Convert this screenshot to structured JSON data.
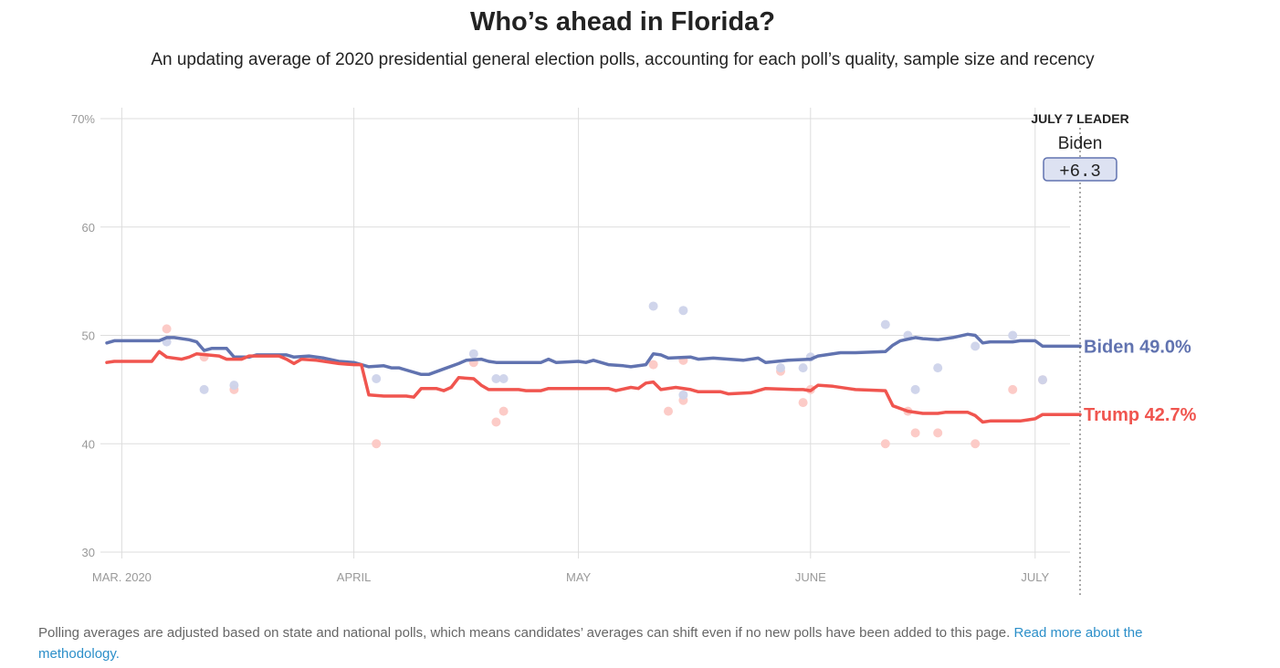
{
  "title": "Who’s ahead in Florida?",
  "subtitle": "An updating average of 2020 presidential general election polls, accounting for each poll’s quality, sample size and recency",
  "footer": {
    "text": "Polling averages are adjusted based on state and national polls, which means candidates’ averages can shift even if no new polls have been added to this page. ",
    "link": "Read more about the methodology."
  },
  "leader_box": {
    "heading": "JULY 7 LEADER",
    "name": "Biden",
    "margin": "+6.3"
  },
  "colors": {
    "biden": "#6173b0",
    "trump": "#f0554f",
    "biden_poll": "#cdd3ea",
    "trump_poll": "#fcc8c4",
    "grid": "#dddddd"
  },
  "chart_data": {
    "type": "line",
    "x_unit": "date (2020)",
    "x_range": [
      "2020-02-28",
      "2020-07-07"
    ],
    "ylim": [
      30,
      70
    ],
    "y_ticks": [
      "70%",
      "60",
      "50",
      "40",
      "30"
    ],
    "y_tick_values": [
      70,
      60,
      50,
      40,
      30
    ],
    "x_ticks": [
      {
        "label": "MAR. 2020",
        "date": "2020-03-01"
      },
      {
        "label": "APRIL",
        "date": "2020-04-01"
      },
      {
        "label": "MAY",
        "date": "2020-05-01"
      },
      {
        "label": "JUNE",
        "date": "2020-06-01"
      },
      {
        "label": "JULY",
        "date": "2020-07-01"
      }
    ],
    "grid": true,
    "series": [
      {
        "name": "Biden",
        "end_label": "Biden 49.0%",
        "points": [
          [
            "2020-02-28",
            49.3
          ],
          [
            "2020-02-29",
            49.5
          ],
          [
            "2020-03-04",
            49.5
          ],
          [
            "2020-03-06",
            49.5
          ],
          [
            "2020-03-07",
            49.8
          ],
          [
            "2020-03-08",
            49.8
          ],
          [
            "2020-03-10",
            49.6
          ],
          [
            "2020-03-11",
            49.4
          ],
          [
            "2020-03-12",
            48.6
          ],
          [
            "2020-03-13",
            48.8
          ],
          [
            "2020-03-15",
            48.8
          ],
          [
            "2020-03-16",
            48.0
          ],
          [
            "2020-03-18",
            48.0
          ],
          [
            "2020-03-19",
            48.2
          ],
          [
            "2020-03-23",
            48.2
          ],
          [
            "2020-03-24",
            48.0
          ],
          [
            "2020-03-26",
            48.1
          ],
          [
            "2020-03-28",
            47.9
          ],
          [
            "2020-03-30",
            47.6
          ],
          [
            "2020-04-01",
            47.5
          ],
          [
            "2020-04-03",
            47.1
          ],
          [
            "2020-04-05",
            47.2
          ],
          [
            "2020-04-06",
            47.0
          ],
          [
            "2020-04-07",
            47.0
          ],
          [
            "2020-04-08",
            46.8
          ],
          [
            "2020-04-10",
            46.4
          ],
          [
            "2020-04-11",
            46.4
          ],
          [
            "2020-04-13",
            46.9
          ],
          [
            "2020-04-15",
            47.4
          ],
          [
            "2020-04-16",
            47.7
          ],
          [
            "2020-04-18",
            47.8
          ],
          [
            "2020-04-19",
            47.6
          ],
          [
            "2020-04-20",
            47.5
          ],
          [
            "2020-04-26",
            47.5
          ],
          [
            "2020-04-27",
            47.8
          ],
          [
            "2020-04-28",
            47.5
          ],
          [
            "2020-05-01",
            47.6
          ],
          [
            "2020-05-02",
            47.5
          ],
          [
            "2020-05-03",
            47.7
          ],
          [
            "2020-05-05",
            47.3
          ],
          [
            "2020-05-07",
            47.2
          ],
          [
            "2020-05-08",
            47.1
          ],
          [
            "2020-05-10",
            47.3
          ],
          [
            "2020-05-11",
            48.3
          ],
          [
            "2020-05-12",
            48.2
          ],
          [
            "2020-05-13",
            47.9
          ],
          [
            "2020-05-16",
            48.0
          ],
          [
            "2020-05-17",
            47.8
          ],
          [
            "2020-05-19",
            47.9
          ],
          [
            "2020-05-23",
            47.7
          ],
          [
            "2020-05-25",
            47.9
          ],
          [
            "2020-05-26",
            47.5
          ],
          [
            "2020-05-29",
            47.7
          ],
          [
            "2020-06-01",
            47.8
          ],
          [
            "2020-06-02",
            48.1
          ],
          [
            "2020-06-05",
            48.4
          ],
          [
            "2020-06-07",
            48.4
          ],
          [
            "2020-06-11",
            48.5
          ],
          [
            "2020-06-12",
            49.1
          ],
          [
            "2020-06-13",
            49.5
          ],
          [
            "2020-06-15",
            49.8
          ],
          [
            "2020-06-16",
            49.7
          ],
          [
            "2020-06-18",
            49.6
          ],
          [
            "2020-06-20",
            49.8
          ],
          [
            "2020-06-22",
            50.1
          ],
          [
            "2020-06-23",
            50.0
          ],
          [
            "2020-06-24",
            49.3
          ],
          [
            "2020-06-25",
            49.4
          ],
          [
            "2020-06-28",
            49.4
          ],
          [
            "2020-06-29",
            49.5
          ],
          [
            "2020-07-01",
            49.5
          ],
          [
            "2020-07-02",
            49.0
          ],
          [
            "2020-07-07",
            49.0
          ]
        ]
      },
      {
        "name": "Trump",
        "end_label": "Trump 42.7%",
        "points": [
          [
            "2020-02-28",
            47.5
          ],
          [
            "2020-02-29",
            47.6
          ],
          [
            "2020-03-05",
            47.6
          ],
          [
            "2020-03-06",
            48.5
          ],
          [
            "2020-03-07",
            48.0
          ],
          [
            "2020-03-09",
            47.8
          ],
          [
            "2020-03-10",
            48.0
          ],
          [
            "2020-03-11",
            48.3
          ],
          [
            "2020-03-14",
            48.1
          ],
          [
            "2020-03-15",
            47.8
          ],
          [
            "2020-03-17",
            47.8
          ],
          [
            "2020-03-18",
            48.1
          ],
          [
            "2020-03-22",
            48.1
          ],
          [
            "2020-03-23",
            47.8
          ],
          [
            "2020-03-24",
            47.4
          ],
          [
            "2020-03-25",
            47.8
          ],
          [
            "2020-03-27",
            47.7
          ],
          [
            "2020-03-30",
            47.4
          ],
          [
            "2020-04-01",
            47.3
          ],
          [
            "2020-04_02",
            47.3
          ],
          [
            "2020-04-03",
            44.5
          ],
          [
            "2020-04-05",
            44.4
          ],
          [
            "2020-04-08",
            44.4
          ],
          [
            "2020-04-09",
            44.3
          ],
          [
            "2020-04-10",
            45.1
          ],
          [
            "2020-04-12",
            45.1
          ],
          [
            "2020-04-13",
            44.9
          ],
          [
            "2020-04-14",
            45.2
          ],
          [
            "2020-04-15",
            46.1
          ],
          [
            "2020-04-17",
            46.0
          ],
          [
            "2020-04-18",
            45.4
          ],
          [
            "2020-04-19",
            45.0
          ],
          [
            "2020-04-23",
            45.0
          ],
          [
            "2020-04-24",
            44.9
          ],
          [
            "2020-04-26",
            44.9
          ],
          [
            "2020-04-27",
            45.1
          ],
          [
            "2020-05-05",
            45.1
          ],
          [
            "2020-05-06",
            44.9
          ],
          [
            "2020-05-08",
            45.2
          ],
          [
            "2020-05-09",
            45.1
          ],
          [
            "2020-05-10",
            45.6
          ],
          [
            "2020-05-11",
            45.7
          ],
          [
            "2020-05-12",
            45.0
          ],
          [
            "2020-05-14",
            45.2
          ],
          [
            "2020-05-16",
            45.0
          ],
          [
            "2020-05-17",
            44.8
          ],
          [
            "2020-05-20",
            44.8
          ],
          [
            "2020-05-21",
            44.6
          ],
          [
            "2020-05-24",
            44.7
          ],
          [
            "2020-05-26",
            45.1
          ],
          [
            "2020-05-30",
            45.0
          ],
          [
            "2020-05-31",
            45.0
          ],
          [
            "2020-06-01",
            44.9
          ],
          [
            "2020-06-02",
            45.4
          ],
          [
            "2020-06-04",
            45.3
          ],
          [
            "2020-06-06",
            45.1
          ],
          [
            "2020-06-07",
            45.0
          ],
          [
            "2020-06-11",
            44.9
          ],
          [
            "2020-06-12",
            43.5
          ],
          [
            "2020-06-14",
            43.0
          ],
          [
            "2020-06-16",
            42.8
          ],
          [
            "2020-06-18",
            42.8
          ],
          [
            "2020-06-19",
            42.9
          ],
          [
            "2020-06-22",
            42.9
          ],
          [
            "2020-06-23",
            42.6
          ],
          [
            "2020-06-24",
            42.0
          ],
          [
            "2020-06-25",
            42.1
          ],
          [
            "2020-06-29",
            42.1
          ],
          [
            "2020-06-30",
            42.2
          ],
          [
            "2020-07-01",
            42.3
          ],
          [
            "2020-07-02",
            42.7
          ],
          [
            "2020-07-07",
            42.7
          ]
        ]
      }
    ],
    "polls": {
      "Biden": [
        [
          "2020-03-07",
          49.4
        ],
        [
          "2020-03-12",
          45.0
        ],
        [
          "2020-03-16",
          45.4
        ],
        [
          "2020-04-04",
          46.0
        ],
        [
          "2020-04-17",
          48.3
        ],
        [
          "2020-04-20",
          46.0
        ],
        [
          "2020-04-21",
          46.0
        ],
        [
          "2020-05-11",
          52.7
        ],
        [
          "2020-05-15",
          52.3
        ],
        [
          "2020-05-15",
          44.5
        ],
        [
          "2020-05-28",
          47.0
        ],
        [
          "2020-05-31",
          47.0
        ],
        [
          "2020-06-01",
          48.0
        ],
        [
          "2020-06-11",
          51.0
        ],
        [
          "2020-06-14",
          50.0
        ],
        [
          "2020-06-15",
          45.0
        ],
        [
          "2020-06-18",
          47.0
        ],
        [
          "2020-06-23",
          49.0
        ],
        [
          "2020-06-28",
          50.0
        ],
        [
          "2020-07-02",
          45.9
        ]
      ],
      "Trump": [
        [
          "2020-03-07",
          50.6
        ],
        [
          "2020-03-12",
          48.0
        ],
        [
          "2020-03-16",
          45.0
        ],
        [
          "2020-04-04",
          40.0
        ],
        [
          "2020-04-17",
          47.5
        ],
        [
          "2020-04-20",
          42.0
        ],
        [
          "2020-04-21",
          43.0
        ],
        [
          "2020-05-11",
          47.3
        ],
        [
          "2020-05-13",
          43.0
        ],
        [
          "2020-05-15",
          44.0
        ],
        [
          "2020-05-15",
          47.7
        ],
        [
          "2020-05-28",
          46.7
        ],
        [
          "2020-05-31",
          43.8
        ],
        [
          "2020-06-01",
          45.0
        ],
        [
          "2020-06-11",
          40.0
        ],
        [
          "2020-06-14",
          43.0
        ],
        [
          "2020-06-15",
          41.0
        ],
        [
          "2020-06-18",
          41.0
        ],
        [
          "2020-06-23",
          40.0
        ],
        [
          "2020-06-28",
          45.0
        ],
        [
          "2020-07-02",
          45.9
        ]
      ]
    }
  }
}
